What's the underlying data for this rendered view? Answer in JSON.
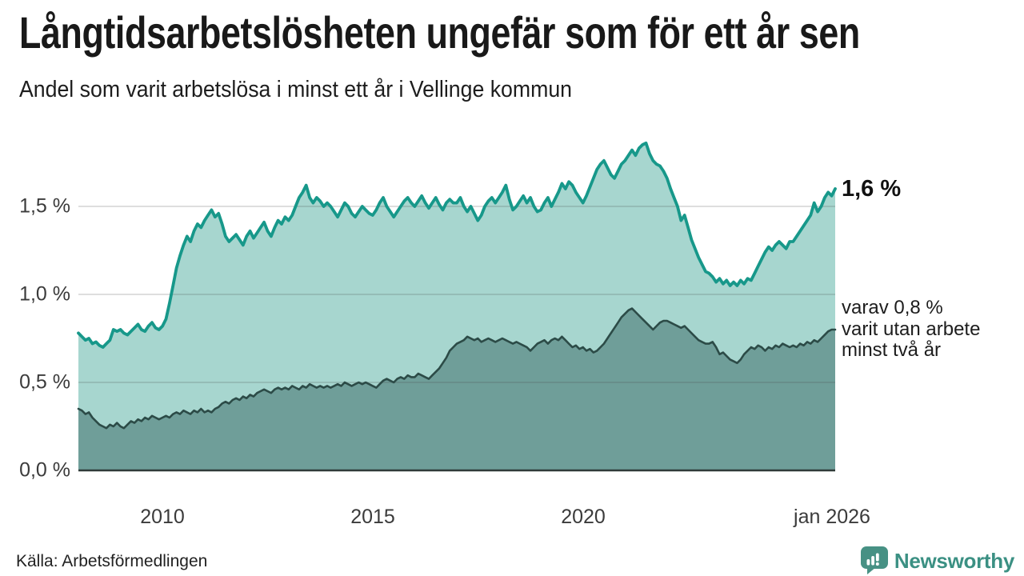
{
  "header": {
    "title": "Långtidsarbetslösheten ungefär som för ett år sen",
    "subtitle": "Andel som varit arbetslösa i minst ett år i Vellinge kommun"
  },
  "chart_data": {
    "type": "area",
    "title": "Långtidsarbetslösheten ungefär som för ett år sen",
    "subtitle": "Andel som varit arbetslösa i minst ett år i Vellinge kommun",
    "x_start": "2008-01",
    "x_end": "2026-01",
    "x_interval": "monthly",
    "ylim": [
      0,
      1.9
    ],
    "grid": true,
    "unit": "%",
    "yticks": [
      {
        "label": "1,5 %",
        "value": 1.5
      },
      {
        "label": "1,0 %",
        "value": 1.0
      },
      {
        "label": "0,5 %",
        "value": 0.5
      },
      {
        "label": "0,0 %",
        "value": 0.0
      }
    ],
    "xticks": [
      {
        "label": "2010",
        "month_index": 24
      },
      {
        "label": "2015",
        "month_index": 84
      },
      {
        "label": "2020",
        "month_index": 144
      },
      {
        "label": "jan 2026",
        "month_index": 216
      }
    ],
    "series": [
      {
        "name": "Andel arbetslösa minst ett år",
        "color": "#17988a",
        "fill": "#a7d6cf",
        "latest_label": "1,6 %",
        "values": [
          0.78,
          0.76,
          0.74,
          0.75,
          0.72,
          0.73,
          0.71,
          0.7,
          0.72,
          0.74,
          0.8,
          0.79,
          0.8,
          0.78,
          0.77,
          0.79,
          0.81,
          0.83,
          0.8,
          0.79,
          0.82,
          0.84,
          0.81,
          0.8,
          0.82,
          0.86,
          0.95,
          1.05,
          1.15,
          1.22,
          1.28,
          1.33,
          1.3,
          1.36,
          1.4,
          1.38,
          1.42,
          1.45,
          1.48,
          1.44,
          1.46,
          1.4,
          1.33,
          1.3,
          1.32,
          1.34,
          1.31,
          1.28,
          1.33,
          1.36,
          1.32,
          1.35,
          1.38,
          1.41,
          1.36,
          1.33,
          1.38,
          1.42,
          1.4,
          1.44,
          1.42,
          1.45,
          1.5,
          1.55,
          1.58,
          1.62,
          1.55,
          1.52,
          1.55,
          1.53,
          1.5,
          1.52,
          1.5,
          1.47,
          1.44,
          1.48,
          1.52,
          1.5,
          1.46,
          1.44,
          1.47,
          1.5,
          1.48,
          1.46,
          1.45,
          1.48,
          1.52,
          1.55,
          1.5,
          1.47,
          1.44,
          1.47,
          1.5,
          1.53,
          1.55,
          1.52,
          1.5,
          1.53,
          1.56,
          1.52,
          1.49,
          1.52,
          1.55,
          1.51,
          1.48,
          1.52,
          1.54,
          1.52,
          1.52,
          1.55,
          1.5,
          1.47,
          1.5,
          1.46,
          1.42,
          1.45,
          1.5,
          1.53,
          1.55,
          1.52,
          1.55,
          1.58,
          1.62,
          1.54,
          1.48,
          1.5,
          1.53,
          1.56,
          1.52,
          1.55,
          1.5,
          1.47,
          1.48,
          1.52,
          1.55,
          1.5,
          1.54,
          1.58,
          1.63,
          1.6,
          1.64,
          1.62,
          1.58,
          1.55,
          1.52,
          1.56,
          1.61,
          1.66,
          1.71,
          1.74,
          1.76,
          1.72,
          1.68,
          1.66,
          1.7,
          1.74,
          1.76,
          1.79,
          1.82,
          1.79,
          1.83,
          1.85,
          1.86,
          1.8,
          1.76,
          1.74,
          1.73,
          1.7,
          1.66,
          1.6,
          1.55,
          1.5,
          1.42,
          1.45,
          1.38,
          1.31,
          1.26,
          1.21,
          1.17,
          1.13,
          1.12,
          1.1,
          1.07,
          1.09,
          1.06,
          1.08,
          1.05,
          1.07,
          1.05,
          1.08,
          1.06,
          1.09,
          1.08,
          1.12,
          1.16,
          1.2,
          1.24,
          1.27,
          1.25,
          1.28,
          1.3,
          1.28,
          1.26,
          1.3,
          1.3,
          1.33,
          1.36,
          1.39,
          1.42,
          1.45,
          1.52,
          1.47,
          1.5,
          1.55,
          1.58,
          1.56,
          1.6
        ]
      },
      {
        "name": "Andel arbetslösa minst två år",
        "color": "#2c4b47",
        "fill": "#6f9e99",
        "latest_label": "varav 0,8 % varit utan arbete minst två år",
        "values": [
          0.35,
          0.34,
          0.32,
          0.33,
          0.3,
          0.28,
          0.26,
          0.25,
          0.24,
          0.26,
          0.25,
          0.27,
          0.25,
          0.24,
          0.26,
          0.28,
          0.27,
          0.29,
          0.28,
          0.3,
          0.29,
          0.31,
          0.3,
          0.29,
          0.3,
          0.31,
          0.3,
          0.32,
          0.33,
          0.32,
          0.34,
          0.33,
          0.32,
          0.34,
          0.33,
          0.35,
          0.33,
          0.34,
          0.33,
          0.35,
          0.36,
          0.38,
          0.39,
          0.38,
          0.4,
          0.41,
          0.4,
          0.42,
          0.41,
          0.43,
          0.42,
          0.44,
          0.45,
          0.46,
          0.45,
          0.44,
          0.46,
          0.47,
          0.46,
          0.47,
          0.46,
          0.48,
          0.47,
          0.46,
          0.48,
          0.47,
          0.49,
          0.48,
          0.47,
          0.48,
          0.47,
          0.48,
          0.47,
          0.48,
          0.49,
          0.48,
          0.5,
          0.49,
          0.48,
          0.49,
          0.5,
          0.49,
          0.5,
          0.49,
          0.48,
          0.47,
          0.49,
          0.51,
          0.52,
          0.51,
          0.5,
          0.52,
          0.53,
          0.52,
          0.54,
          0.53,
          0.53,
          0.55,
          0.54,
          0.53,
          0.52,
          0.54,
          0.56,
          0.58,
          0.61,
          0.64,
          0.68,
          0.7,
          0.72,
          0.73,
          0.74,
          0.76,
          0.75,
          0.74,
          0.75,
          0.73,
          0.74,
          0.75,
          0.74,
          0.73,
          0.74,
          0.75,
          0.74,
          0.73,
          0.72,
          0.73,
          0.72,
          0.71,
          0.7,
          0.68,
          0.7,
          0.72,
          0.73,
          0.74,
          0.72,
          0.74,
          0.75,
          0.74,
          0.76,
          0.74,
          0.72,
          0.7,
          0.71,
          0.69,
          0.7,
          0.68,
          0.69,
          0.67,
          0.68,
          0.7,
          0.72,
          0.75,
          0.78,
          0.81,
          0.84,
          0.87,
          0.89,
          0.91,
          0.92,
          0.9,
          0.88,
          0.86,
          0.84,
          0.82,
          0.8,
          0.82,
          0.84,
          0.85,
          0.85,
          0.84,
          0.83,
          0.82,
          0.81,
          0.82,
          0.8,
          0.78,
          0.76,
          0.74,
          0.73,
          0.72,
          0.72,
          0.73,
          0.7,
          0.66,
          0.67,
          0.65,
          0.63,
          0.62,
          0.61,
          0.63,
          0.66,
          0.68,
          0.7,
          0.69,
          0.71,
          0.7,
          0.68,
          0.7,
          0.69,
          0.71,
          0.7,
          0.72,
          0.71,
          0.7,
          0.71,
          0.7,
          0.72,
          0.71,
          0.73,
          0.72,
          0.74,
          0.73,
          0.75,
          0.77,
          0.79,
          0.8,
          0.8
        ]
      }
    ],
    "annotations": {
      "latest_total": "1,6 %",
      "latest_two_years_lines": [
        "varav 0,8 %",
        "varit utan arbete",
        "minst två år"
      ]
    },
    "legend_position": "right-annotations"
  },
  "footer": {
    "source": "Källa: Arbetsförmedlingen",
    "brand": "Newsworthy"
  },
  "colors": {
    "line_one_year": "#17988a",
    "fill_one_year": "#a7d6cf",
    "line_two_years": "#2c4b47",
    "fill_two_years": "#6f9e99",
    "gridline": "#dcdcdc",
    "baseline": "#2f3b39",
    "brand_teal": "#3b9083",
    "text": "#1d1d1d"
  }
}
